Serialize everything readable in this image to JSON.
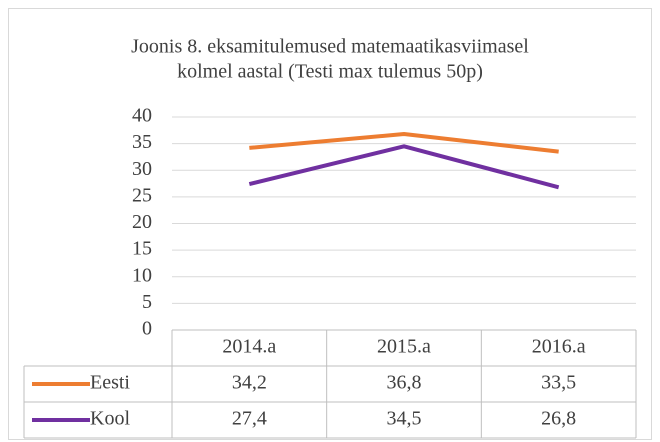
{
  "chart_data": {
    "type": "line",
    "title": [
      "Joonis 8. eksamitulemused matemaatikasviimasel",
      "kolmel aastal (Testi max tulemus 50p)"
    ],
    "categories": [
      "2014.a",
      "2015.a",
      "2016.a"
    ],
    "series": [
      {
        "name": "Eesti",
        "color": "#ed7d31",
        "values": [
          34.2,
          36.8,
          33.5
        ],
        "value_labels": [
          "34,2",
          "36,8",
          "33,5"
        ]
      },
      {
        "name": "Kool",
        "color": "#7030a0",
        "values": [
          27.4,
          34.5,
          26.8
        ],
        "value_labels": [
          "27,4",
          "34,5",
          "26,8"
        ]
      }
    ],
    "ylim": [
      0,
      40
    ],
    "yticks": [
      0,
      5,
      10,
      15,
      20,
      25,
      30,
      35,
      40
    ],
    "grid": true
  }
}
